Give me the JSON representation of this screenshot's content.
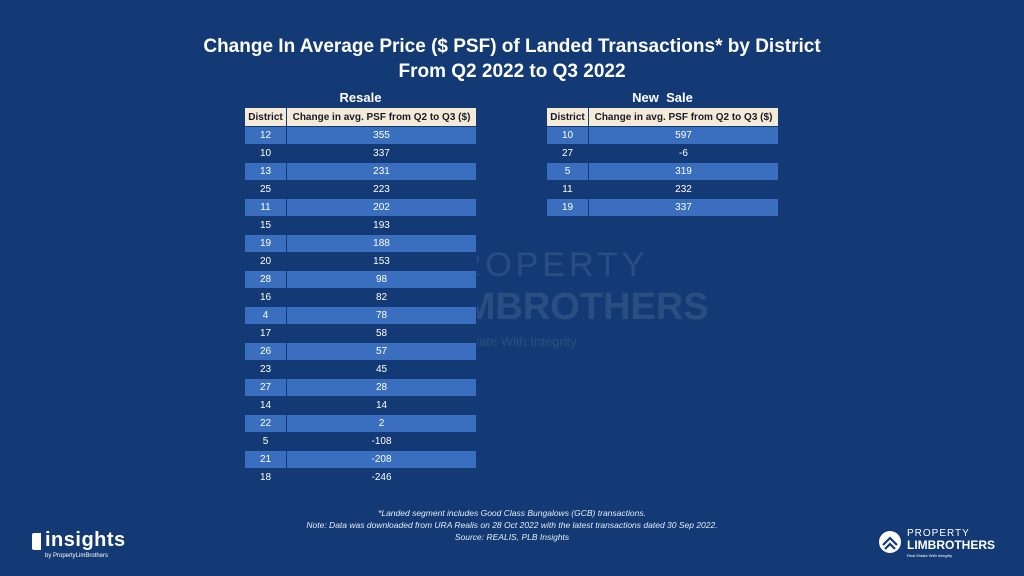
{
  "chart_data": {
    "type": "table",
    "title": "Change In Average Price ($ PSF) of Landed Transactions* by District",
    "subtitle": "From Q2 2022 to Q3 2022",
    "tables": [
      {
        "caption": "Resale",
        "columns": [
          "District",
          "Change in avg. PSF from Q2 to Q3 ($)"
        ],
        "rows": [
          [
            "12",
            "355"
          ],
          [
            "10",
            "337"
          ],
          [
            "13",
            "231"
          ],
          [
            "25",
            "223"
          ],
          [
            "11",
            "202"
          ],
          [
            "15",
            "193"
          ],
          [
            "19",
            "188"
          ],
          [
            "20",
            "153"
          ],
          [
            "28",
            "98"
          ],
          [
            "16",
            "82"
          ],
          [
            "4",
            "78"
          ],
          [
            "17",
            "58"
          ],
          [
            "26",
            "57"
          ],
          [
            "23",
            "45"
          ],
          [
            "27",
            "28"
          ],
          [
            "14",
            "14"
          ],
          [
            "22",
            "2"
          ],
          [
            "5",
            "-108"
          ],
          [
            "21",
            "-208"
          ],
          [
            "18",
            "-246"
          ]
        ]
      },
      {
        "caption": "New  Sale",
        "columns": [
          "District",
          "Change in avg. PSF from Q2 to Q3 ($)"
        ],
        "rows": [
          [
            "10",
            "597"
          ],
          [
            "27",
            "-6"
          ],
          [
            "5",
            "319"
          ],
          [
            "11",
            "232"
          ],
          [
            "19",
            "337"
          ]
        ]
      }
    ]
  },
  "notes": [
    "*Landed segment includes Good Class Bungalows (GCB) transactions.",
    "Note: Data was downloaded from URA Realis on 28 Oct 2022 with the latest transactions dated 30 Sep 2022.",
    "Source: REALIS, PLB Insights"
  ],
  "watermark": {
    "line1": "PROPERTY",
    "line2": "LIMBROTHERS",
    "line3": "Real Estate With Integrity"
  },
  "branding": {
    "insights_word": "insights",
    "insights_sub": "by PropertyLimBrothers",
    "plb_line1": "PROPERTY",
    "plb_line2": "LIMBROTHERS",
    "plb_line3": "Real Estate With Integrity"
  },
  "colors": {
    "background": "#133a74",
    "row_alt": "#3a6fc0",
    "header_bg": "#f3ead8"
  }
}
